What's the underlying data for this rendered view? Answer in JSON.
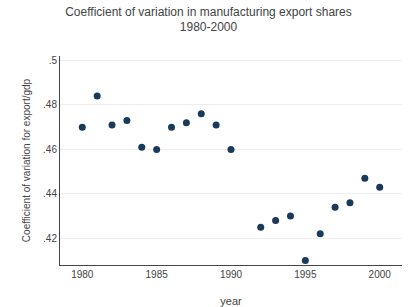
{
  "chart_data": {
    "type": "scatter",
    "title": "Coefficient of variation in manufacturing export shares",
    "subtitle": "1980-2000",
    "x_label": "year",
    "y_label": "Coefficient of variation for export/gdp",
    "x": [
      1980,
      1981,
      1982,
      1983,
      1984,
      1985,
      1986,
      1987,
      1988,
      1989,
      1990,
      1992,
      1993,
      1994,
      1995,
      1996,
      1997,
      1998,
      1999,
      2000
    ],
    "values": [
      0.47,
      0.484,
      0.471,
      0.473,
      0.461,
      0.46,
      0.47,
      0.472,
      0.476,
      0.471,
      0.46,
      0.425,
      0.428,
      0.43,
      0.41,
      0.422,
      0.434,
      0.436,
      0.447,
      0.443
    ],
    "color": "#1a3a5c",
    "xlim": [
      1978.5,
      2001.5
    ],
    "ylim": [
      0.408,
      0.502
    ],
    "xticks": [
      1980,
      1985,
      1990,
      1995,
      2000
    ],
    "yticks": [
      {
        "value": 0.42,
        "label": ".42"
      },
      {
        "value": 0.44,
        "label": ".44"
      },
      {
        "value": 0.46,
        "label": ".46"
      },
      {
        "value": 0.48,
        "label": ".48"
      },
      {
        "value": 0.5,
        "label": ".5"
      }
    ],
    "grid": "y"
  }
}
